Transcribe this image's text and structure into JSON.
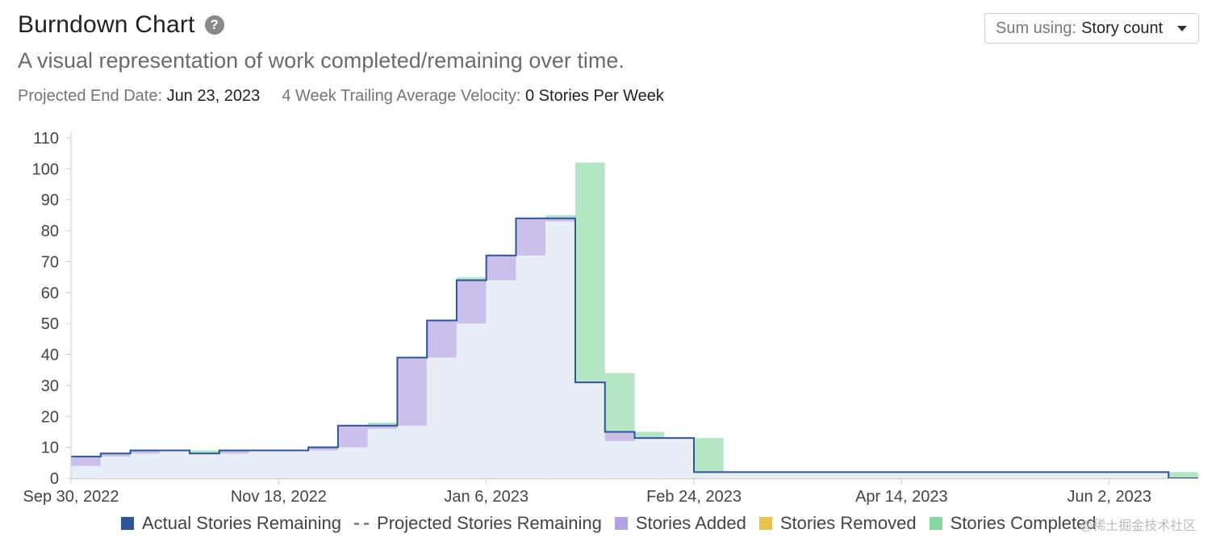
{
  "header": {
    "title": "Burndown Chart",
    "subtitle": "A visual representation of work completed/remaining over time.",
    "projected_end_label": "Projected End Date:",
    "projected_end_value": "Jun 23, 2023",
    "velocity_label": "4 Week Trailing Average Velocity:",
    "velocity_value": "0 Stories Per Week",
    "help_icon": "question-circle-icon"
  },
  "sum_select": {
    "label": "Sum using:",
    "value": "Story count",
    "icon": "caret-down-icon"
  },
  "watermark": "@稀土掘金技术社区",
  "chart_data": {
    "type": "area",
    "ylim": [
      0,
      110
    ],
    "yticks": [
      0,
      10,
      20,
      30,
      40,
      50,
      60,
      70,
      80,
      90,
      100,
      110
    ],
    "xlim": [
      "2022-09-30",
      "2023-06-23"
    ],
    "xticks": [
      {
        "date": "2022-09-30",
        "label": "Sep 30, 2022"
      },
      {
        "date": "2022-11-18",
        "label": "Nov 18, 2022"
      },
      {
        "date": "2023-01-06",
        "label": "Jan 6, 2023"
      },
      {
        "date": "2023-02-24",
        "label": "Feb 24, 2023"
      },
      {
        "date": "2023-04-14",
        "label": "Apr 14, 2023"
      },
      {
        "date": "2023-06-02",
        "label": "Jun 2, 2023"
      }
    ],
    "legend": [
      "Actual Stories Remaining",
      "Projected Stories Remaining",
      "Stories Added",
      "Stories Removed",
      "Stories Completed"
    ],
    "colors": {
      "actual": "#2f5597",
      "projected": "#888888",
      "added": "#b3a2e3",
      "removed": "#e8c24f",
      "completed": "#88d6a2",
      "area_fill": "#e8eef8",
      "added_fill": "#cbbfec",
      "completed_fill": "#b3e6c5"
    },
    "weeks": [
      {
        "start": "2022-09-30",
        "end": "2022-10-07",
        "remaining": 7,
        "added": 3,
        "completed": 0
      },
      {
        "start": "2022-10-07",
        "end": "2022-10-14",
        "remaining": 8,
        "added": 1,
        "completed": 0
      },
      {
        "start": "2022-10-14",
        "end": "2022-10-21",
        "remaining": 9,
        "added": 1,
        "completed": 0
      },
      {
        "start": "2022-10-21",
        "end": "2022-10-28",
        "remaining": 9,
        "added": 0,
        "completed": 0
      },
      {
        "start": "2022-10-28",
        "end": "2022-11-04",
        "remaining": 8,
        "added": 0,
        "completed": 1
      },
      {
        "start": "2022-11-04",
        "end": "2022-11-11",
        "remaining": 9,
        "added": 1,
        "completed": 0
      },
      {
        "start": "2022-11-11",
        "end": "2022-11-18",
        "remaining": 9,
        "added": 0,
        "completed": 0
      },
      {
        "start": "2022-11-18",
        "end": "2022-11-25",
        "remaining": 9,
        "added": 0,
        "completed": 0
      },
      {
        "start": "2022-11-25",
        "end": "2022-12-02",
        "remaining": 10,
        "added": 1,
        "completed": 0
      },
      {
        "start": "2022-12-02",
        "end": "2022-12-09",
        "remaining": 17,
        "added": 7,
        "completed": 0
      },
      {
        "start": "2022-12-09",
        "end": "2022-12-16",
        "remaining": 17,
        "added": 1,
        "completed": 1
      },
      {
        "start": "2022-12-16",
        "end": "2022-12-23",
        "remaining": 39,
        "added": 22,
        "completed": 0
      },
      {
        "start": "2022-12-23",
        "end": "2022-12-30",
        "remaining": 51,
        "added": 12,
        "completed": 0
      },
      {
        "start": "2022-12-30",
        "end": "2023-01-06",
        "remaining": 64,
        "added": 14,
        "completed": 1
      },
      {
        "start": "2023-01-06",
        "end": "2023-01-13",
        "remaining": 72,
        "added": 8,
        "completed": 0
      },
      {
        "start": "2023-01-13",
        "end": "2023-01-20",
        "remaining": 84,
        "added": 12,
        "completed": 0
      },
      {
        "start": "2023-01-20",
        "end": "2023-01-27",
        "remaining": 84,
        "added": 1,
        "completed": 1
      },
      {
        "start": "2023-01-27",
        "end": "2023-02-03",
        "remaining": 31,
        "added": 0,
        "completed": 71
      },
      {
        "start": "2023-02-03",
        "end": "2023-02-10",
        "remaining": 15,
        "added": 3,
        "completed": 19
      },
      {
        "start": "2023-02-10",
        "end": "2023-02-17",
        "remaining": 13,
        "added": 0,
        "completed": 2
      },
      {
        "start": "2023-02-17",
        "end": "2023-02-24",
        "remaining": 13,
        "added": 0,
        "completed": 0
      },
      {
        "start": "2023-02-24",
        "end": "2023-03-03",
        "remaining": 2,
        "added": 0,
        "completed": 11
      },
      {
        "start": "2023-03-03",
        "end": "2023-06-16",
        "remaining": 2,
        "added": 0,
        "completed": 0
      },
      {
        "start": "2023-06-16",
        "end": "2023-06-23",
        "remaining": 0,
        "added": 0,
        "completed": 2
      }
    ]
  }
}
